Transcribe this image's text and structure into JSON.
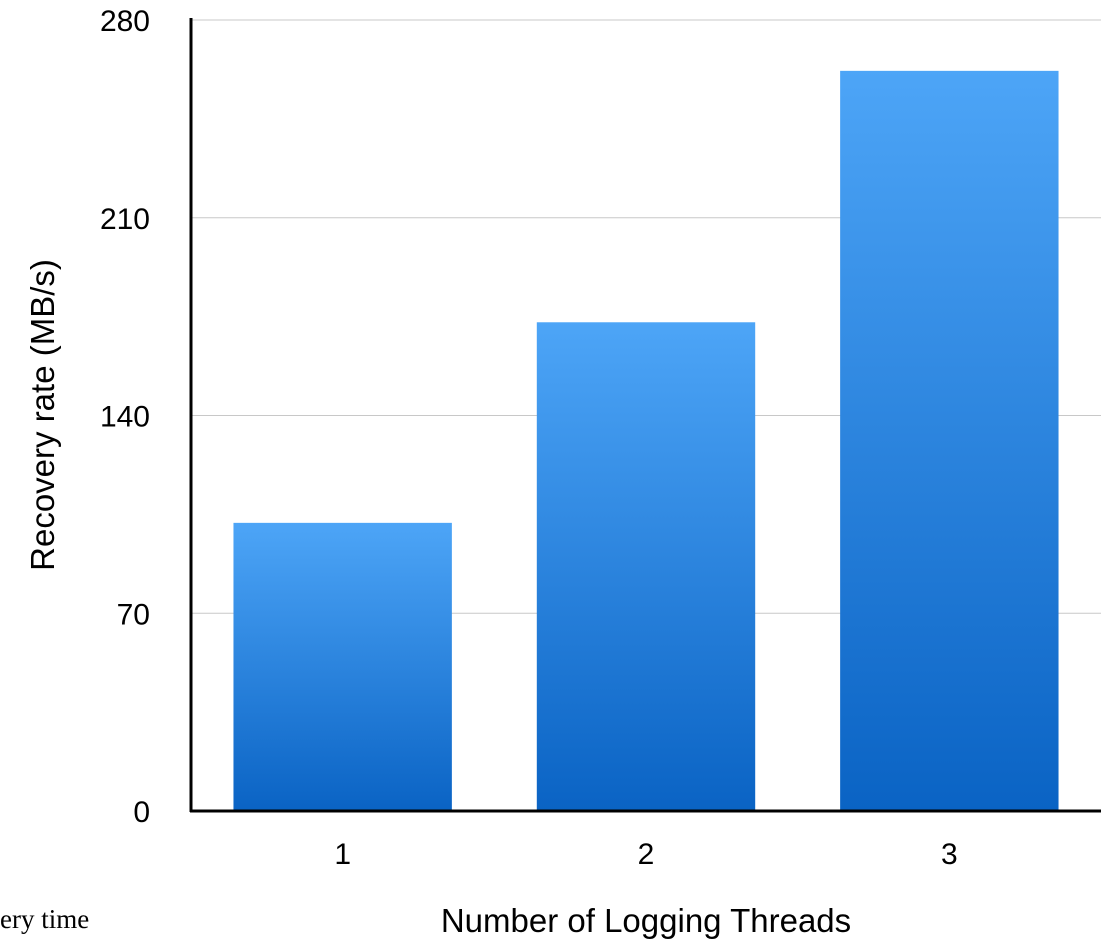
{
  "chart_data": {
    "type": "bar",
    "categories": [
      "1",
      "2",
      "3"
    ],
    "values": [
      102,
      173,
      262
    ],
    "xlabel": "Number of Logging Threads",
    "ylabel": "Recovery rate (MB/s)",
    "ylim": [
      0,
      280
    ],
    "yticks": [
      "0",
      "70",
      "140",
      "210",
      "280"
    ],
    "grid": true,
    "legend": "none",
    "bar_color_top": "#4da5f7",
    "bar_color_bottom": "#0a63c4"
  },
  "page_fragment": {
    "text": "ery time"
  }
}
